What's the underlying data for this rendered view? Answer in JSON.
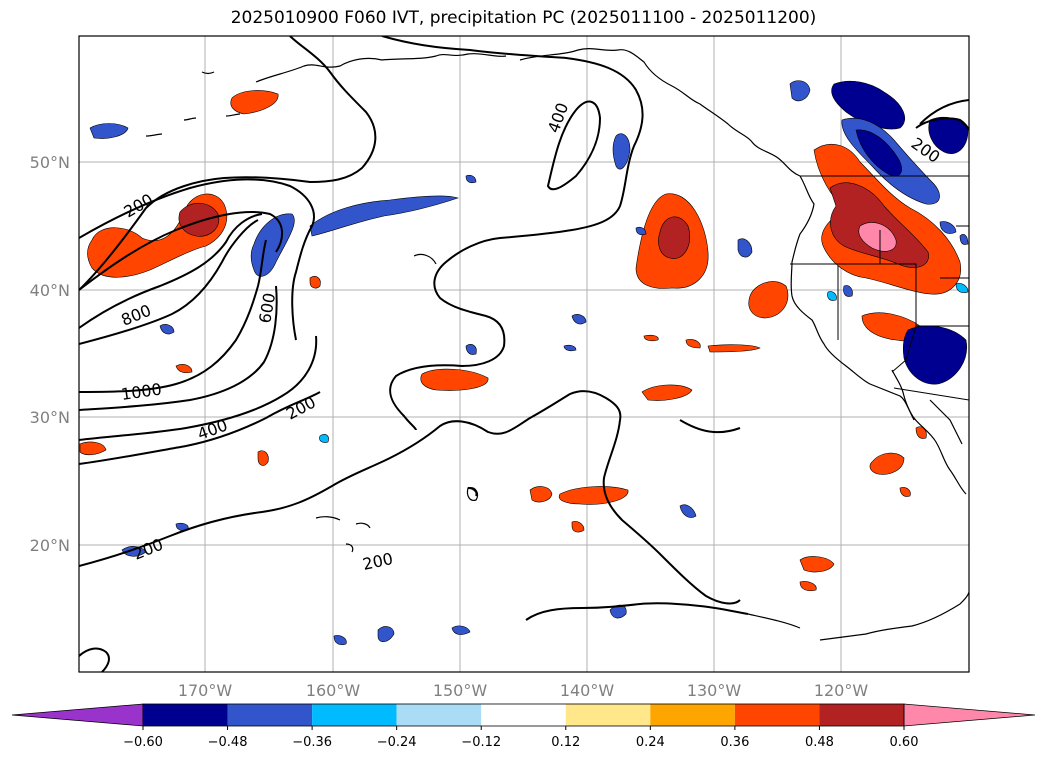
{
  "title": "2025010900 F060 IVT, precipitation PC (2025011100 - 2025011200)",
  "lat_labels": [
    "50°N",
    "40°N",
    "30°N",
    "20°N"
  ],
  "lon_labels": [
    "170°W",
    "160°W",
    "150°W",
    "140°W",
    "130°W",
    "120°W"
  ],
  "contour_labels": [
    "200",
    "800",
    "1000",
    "400",
    "200",
    "600",
    "400",
    "200",
    "200",
    "200",
    "200"
  ],
  "colorbar": {
    "ticks": [
      "−0.60",
      "−0.48",
      "−0.36",
      "−0.24",
      "−0.12",
      "0.12",
      "0.24",
      "0.36",
      "0.48",
      "0.60"
    ],
    "colors": [
      "#9933cc",
      "#000090",
      "#3355cc",
      "#00bbff",
      "#aaddf5",
      "#ffffff",
      "#ffe78a",
      "#ffa500",
      "#ff4500",
      "#b22222",
      "#ff88aa"
    ]
  }
}
